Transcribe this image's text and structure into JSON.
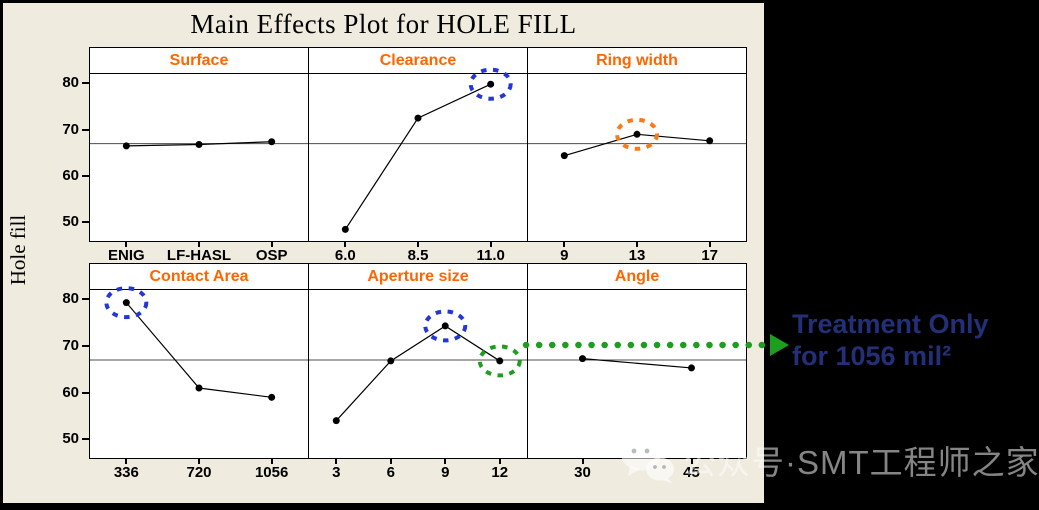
{
  "title": "Main Effects Plot for HOLE FILL",
  "y_axis_label": "Hole fill",
  "colors": {
    "background": "#EFEBDE",
    "frame": "#000000",
    "panel_bg": "#FFFFFF",
    "header_text": "#FF6600",
    "series_line": "#000000",
    "reference_line": "#4D4D4D",
    "highlight": {
      "blue": "#2236D9",
      "orange": "#FB7A14",
      "green": "#1E9E1E"
    },
    "annotation_text": "#232F77"
  },
  "chart_data": {
    "type": "line",
    "title": "Main Effects Plot for HOLE FILL",
    "ylabel": "Hole fill",
    "ylim": [
      46,
      82
    ],
    "yticks": [
      50,
      60,
      70,
      80
    ],
    "reference_line": 67,
    "grid": false,
    "rows": [
      {
        "panels": [
          {
            "label": "Surface",
            "categories": [
              "ENIG",
              "LF-HASL",
              "OSP"
            ],
            "values": [
              66.5,
              66.8,
              67.4
            ],
            "highlights": []
          },
          {
            "label": "Clearance",
            "categories": [
              "6.0",
              "8.5",
              "11.0"
            ],
            "values": [
              48.5,
              72.5,
              79.8
            ],
            "highlights": [
              {
                "index": 2,
                "color": "blue"
              }
            ]
          },
          {
            "label": "Ring width",
            "categories": [
              "9",
              "13",
              "17"
            ],
            "values": [
              64.4,
              69.0,
              67.6
            ],
            "highlights": [
              {
                "index": 1,
                "color": "orange"
              }
            ]
          }
        ]
      },
      {
        "panels": [
          {
            "label": "Contact Area",
            "categories": [
              "336",
              "720",
              "1056"
            ],
            "values": [
              79.3,
              61.0,
              59.0
            ],
            "highlights": [
              {
                "index": 0,
                "color": "blue"
              }
            ]
          },
          {
            "label": "Aperture size",
            "categories": [
              "3",
              "6",
              "9",
              "12"
            ],
            "values": [
              54.0,
              66.8,
              74.3,
              66.8
            ],
            "highlights": [
              {
                "index": 2,
                "color": "blue"
              },
              {
                "index": 3,
                "color": "green"
              }
            ]
          },
          {
            "label": "Angle",
            "categories": [
              "30",
              "45"
            ],
            "values": [
              67.3,
              65.3
            ],
            "highlights": []
          }
        ]
      }
    ]
  },
  "annotation": {
    "line1": "Treatment Only",
    "line2": "for 1056 mil²",
    "arrow_color": "green"
  },
  "watermark": {
    "icon": "wechat-icon",
    "text": "公众号·SMT工程师之家"
  }
}
